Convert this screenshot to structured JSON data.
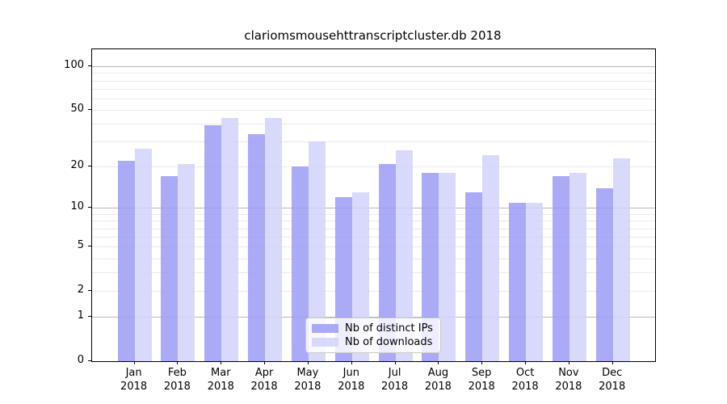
{
  "chart_data": {
    "type": "bar",
    "title": "clariomsmousehttranscriptcluster.db 2018",
    "categories": [
      "Jan",
      "Feb",
      "Mar",
      "Apr",
      "May",
      "Jun",
      "Jul",
      "Aug",
      "Sep",
      "Oct",
      "Nov",
      "Dec"
    ],
    "category_sublabel": "2018",
    "series": [
      {
        "name": "Nb of distinct IPs",
        "color": "#9b9bf6",
        "values": [
          22,
          17,
          39,
          34,
          20,
          12,
          21,
          18,
          13,
          11,
          17,
          14
        ]
      },
      {
        "name": "Nb of downloads",
        "color": "#d2d2fa",
        "values": [
          27,
          21,
          44,
          44,
          30,
          13,
          26,
          18,
          24,
          11,
          18,
          23
        ]
      }
    ],
    "yscale": "log1p",
    "ylim": [
      0,
      131
    ],
    "yticks": [
      100,
      50,
      20,
      10,
      5,
      2,
      1,
      0
    ],
    "major_gridlines": [
      100,
      10,
      1
    ],
    "minor_gridlines": [
      90,
      80,
      70,
      60,
      40,
      30,
      9,
      8,
      7,
      6,
      4,
      3
    ],
    "grid": true,
    "legend_position": "lower center"
  },
  "colors": {
    "bar_distinct_ips": "#9b9bf6",
    "bar_downloads": "#d2d2fa",
    "grid_major": "#b8b8b8",
    "grid_minor": "#ebebeb",
    "axis": "#000000",
    "background": "#ffffff"
  }
}
